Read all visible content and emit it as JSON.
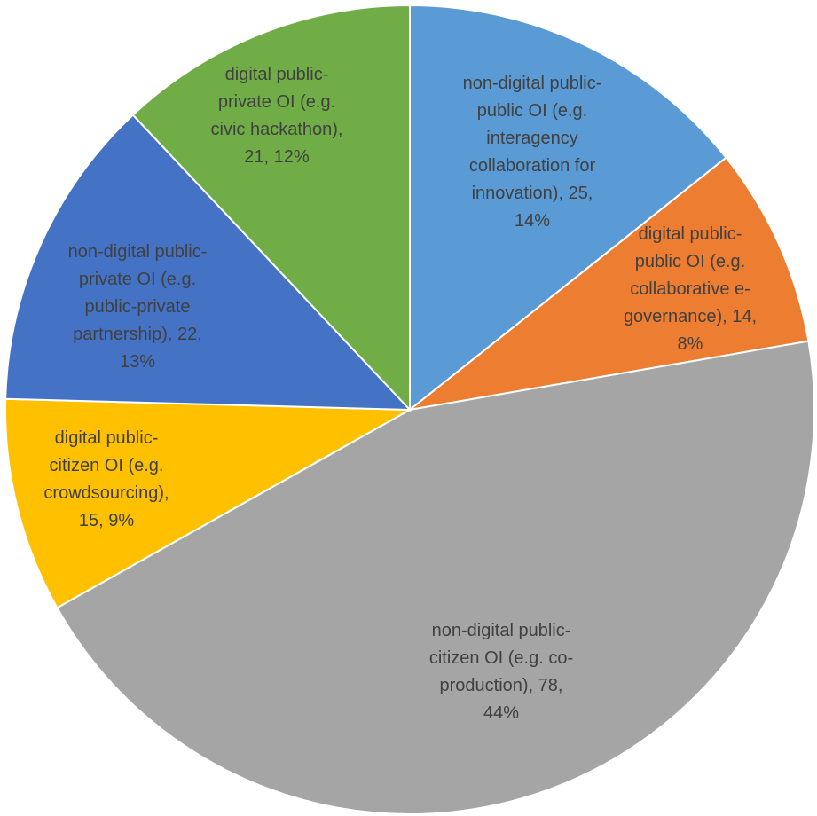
{
  "chart_data": {
    "type": "pie",
    "title": "",
    "start_angle_deg": 0,
    "direction": "clockwise",
    "slices": [
      {
        "label_lines": [
          "non-digital public-",
          "public OI (e.g.",
          "interagency",
          "collaboration for",
          "innovation), 25,",
          "14%"
        ],
        "category": "non-digital public-public OI (e.g. interagency collaboration for innovation)",
        "value": 25,
        "percent": 14,
        "color": "#5B9BD5"
      },
      {
        "label_lines": [
          "digital public-",
          "public OI (e.g.",
          "collaborative e-",
          "governance), 14,",
          "8%"
        ],
        "category": "digital public-public OI (e.g. collaborative e-governance)",
        "value": 14,
        "percent": 8,
        "color": "#ED7D31"
      },
      {
        "label_lines": [
          "non-digital public-",
          "citizen OI (e.g. co-",
          "production), 78,",
          "44%"
        ],
        "category": "non-digital public-citizen OI (e.g. co-production)",
        "value": 78,
        "percent": 44,
        "color": "#A5A5A5"
      },
      {
        "label_lines": [
          "digital public-",
          "citizen OI (e.g.",
          "crowdsourcing),",
          "15, 9%"
        ],
        "category": "digital public-citizen OI (e.g. crowdsourcing)",
        "value": 15,
        "percent": 9,
        "color": "#FFC000"
      },
      {
        "label_lines": [
          "non-digital public-",
          "private OI (e.g.",
          "public-private",
          "partnership), 22,",
          "13%"
        ],
        "category": "non-digital public-private OI (e.g. public-private partnership)",
        "value": 22,
        "percent": 13,
        "color": "#4472C4"
      },
      {
        "label_lines": [
          "digital public-",
          "private OI (e.g.",
          "civic hackathon),",
          "21, 12%"
        ],
        "category": "digital public-private OI (e.g. civic hackathon)",
        "value": 21,
        "percent": 12,
        "color": "#70AD47"
      }
    ]
  }
}
